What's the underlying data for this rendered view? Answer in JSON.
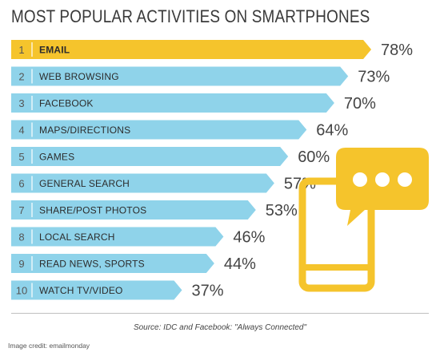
{
  "title": "MOST POPULAR ACTIVITIES ON SMARTPHONES",
  "chart_data": {
    "type": "bar",
    "orientation": "horizontal",
    "title": "MOST POPULAR ACTIVITIES ON SMARTPHONES",
    "ranks": [
      "1",
      "2",
      "3",
      "4",
      "5",
      "6",
      "7",
      "8",
      "9",
      "10"
    ],
    "categories": [
      "EMAIL",
      "WEB BROWSING",
      "FACEBOOK",
      "MAPS/DIRECTIONS",
      "GAMES",
      "GENERAL SEARCH",
      "SHARE/POST PHOTOS",
      "LOCAL SEARCH",
      "READ NEWS, SPORTS",
      "WATCH TV/VIDEO"
    ],
    "values": [
      78,
      73,
      70,
      64,
      60,
      57,
      53,
      46,
      44,
      37
    ],
    "value_labels": [
      "78%",
      "73%",
      "70%",
      "64%",
      "60%",
      "57%",
      "53%",
      "46%",
      "44%",
      "37%"
    ],
    "unit": "%",
    "colors": {
      "highlight": "#f5c42c",
      "bar": "#8fd3ea"
    }
  },
  "illustration": {
    "name": "smartphone-chat-icon",
    "color": "#f5c42c"
  },
  "source": "Source: IDC and Facebook: \"Always Connected\"",
  "credit": "Image credit: emailmonday"
}
